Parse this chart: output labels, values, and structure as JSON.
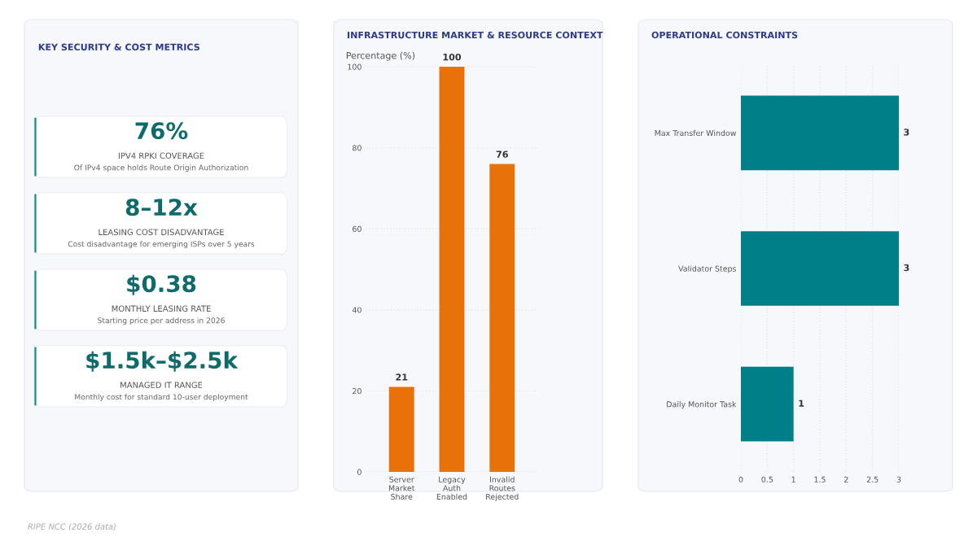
{
  "chart_data": [
    {
      "type": "other",
      "title": "KEY SECURITY & COST METRICS",
      "annotations": [
        "76%",
        "IPV4 RPKI COVERAGE",
        "Of IPv4 space holds Route Origin Authorization",
        "8–12x",
        "LEASING COST DISADVANTAGE",
        "Cost disadvantage for emerging ISPs over 5 years",
        "$0.38",
        "MONTHLY LEASING RATE",
        "Starting price per address in 2026",
        "$1.5k–$2.5k",
        "MANAGED IT RANGE",
        "Monthly cost for standard 10-user deployment"
      ]
    },
    {
      "type": "bar",
      "title": "INFRASTRUCTURE MARKET & RESOURCE CONTEXT",
      "ylabel": "Percentage (%)",
      "categories": [
        "Server Market Share",
        "Legacy Auth Enabled",
        "Invalid Routes Rejected"
      ],
      "values": [
        21,
        100,
        76
      ],
      "color": "#e8710a",
      "ylim": [
        0,
        100
      ],
      "yticks": [
        0,
        20,
        40,
        60,
        80,
        100
      ],
      "grid": "y",
      "data_labels": true
    },
    {
      "type": "bar",
      "orientation": "horizontal",
      "title": "OPERATIONAL CONSTRAINTS",
      "categories": [
        "Max Transfer Window",
        "Validator Steps",
        "Daily Monitor Task"
      ],
      "values": [
        3,
        3,
        1
      ],
      "color": "#007f89",
      "xlim": [
        0,
        3
      ],
      "xticks": [
        0,
        0.5,
        1,
        1.5,
        2,
        2.5,
        3
      ],
      "grid": "x",
      "data_labels": true,
      "annotations": [
        "RIPE NCC (2026 data)"
      ]
    }
  ]
}
